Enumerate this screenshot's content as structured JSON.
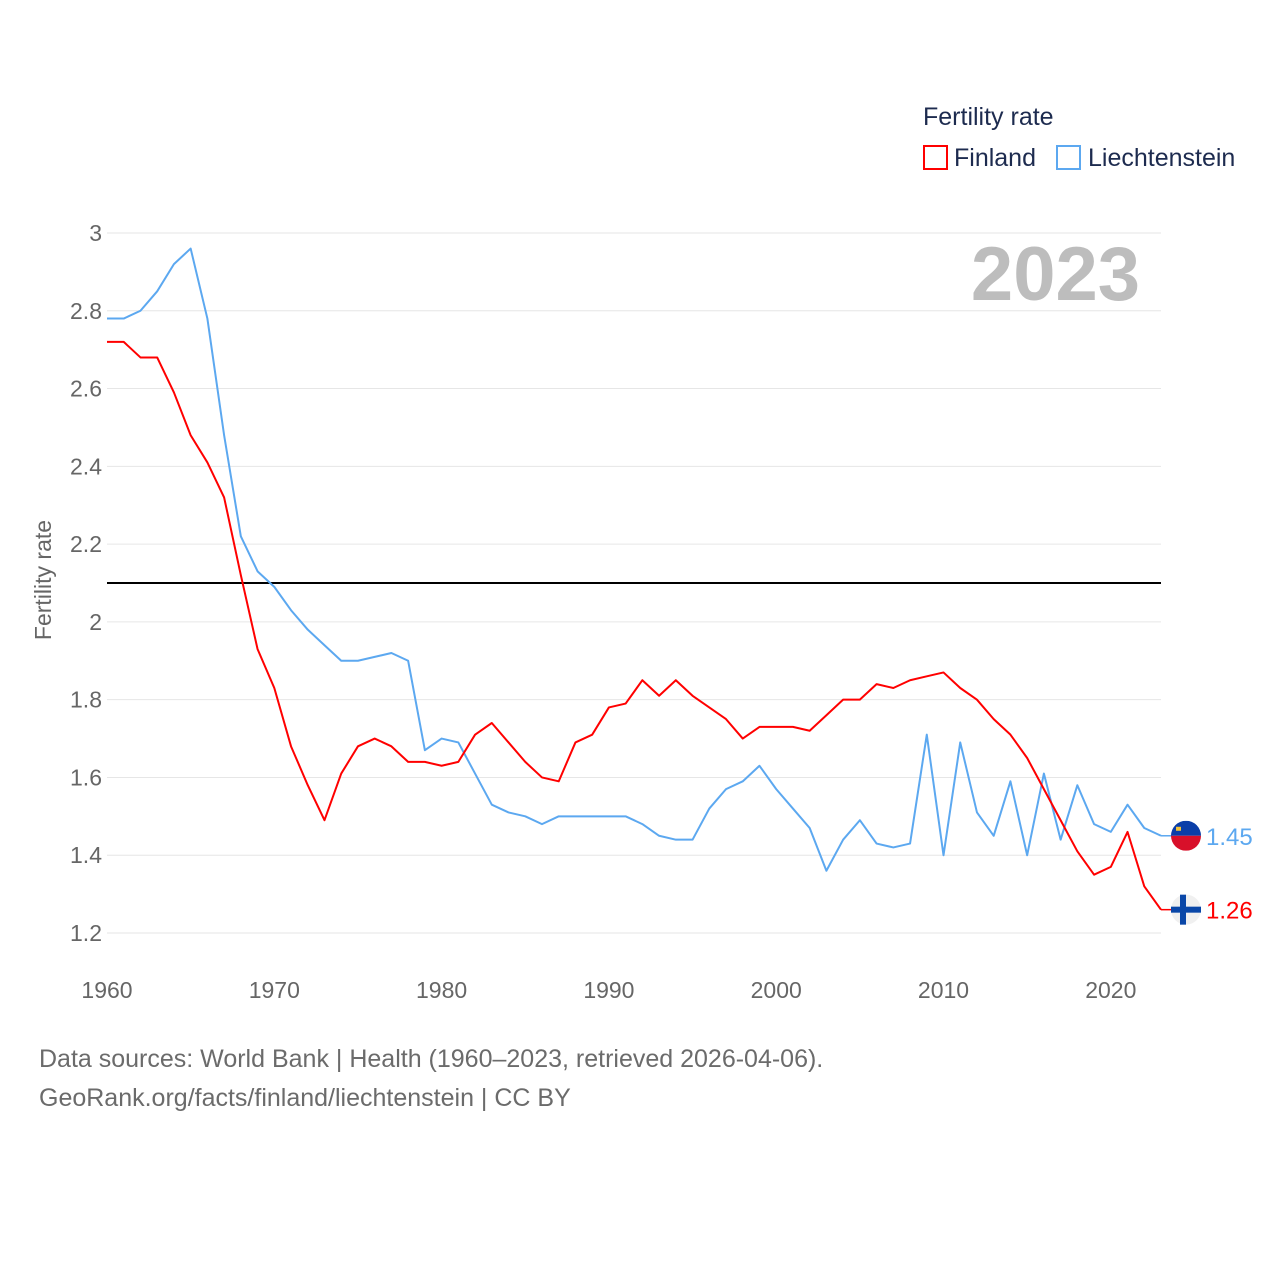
{
  "chart_data": {
    "type": "line",
    "title": "2023",
    "xlabel": "",
    "ylabel": "Fertility rate",
    "legend_title": "Fertility rate",
    "legend_position": "top-right",
    "xlim": [
      1960,
      2023
    ],
    "ylim": [
      1.2,
      3
    ],
    "x_ticks": [
      "1960",
      "1970",
      "1980",
      "1990",
      "2000",
      "2010",
      "2020"
    ],
    "y_ticks": [
      "1.2",
      "1.4",
      "1.6",
      "1.8",
      "2",
      "2.2",
      "2.4",
      "2.6",
      "2.8",
      "3"
    ],
    "grid": true,
    "reference_line": 2.1,
    "x": [
      1960,
      1961,
      1962,
      1963,
      1964,
      1965,
      1966,
      1967,
      1968,
      1969,
      1970,
      1971,
      1972,
      1973,
      1974,
      1975,
      1976,
      1977,
      1978,
      1979,
      1980,
      1981,
      1982,
      1983,
      1984,
      1985,
      1986,
      1987,
      1988,
      1989,
      1990,
      1991,
      1992,
      1993,
      1994,
      1995,
      1996,
      1997,
      1998,
      1999,
      2000,
      2001,
      2002,
      2003,
      2004,
      2005,
      2006,
      2007,
      2008,
      2009,
      2010,
      2011,
      2012,
      2013,
      2014,
      2015,
      2016,
      2017,
      2018,
      2019,
      2020,
      2021,
      2022,
      2023
    ],
    "series": [
      {
        "name": "Finland",
        "color": "#ff0000",
        "end_label": "1.26",
        "values": [
          2.72,
          2.72,
          2.68,
          2.68,
          2.59,
          2.48,
          2.41,
          2.32,
          2.12,
          1.93,
          1.83,
          1.68,
          1.58,
          1.49,
          1.61,
          1.68,
          1.7,
          1.68,
          1.64,
          1.64,
          1.63,
          1.64,
          1.71,
          1.74,
          1.69,
          1.64,
          1.6,
          1.59,
          1.69,
          1.71,
          1.78,
          1.79,
          1.85,
          1.81,
          1.85,
          1.81,
          1.78,
          1.75,
          1.7,
          1.73,
          1.73,
          1.73,
          1.72,
          1.76,
          1.8,
          1.8,
          1.84,
          1.83,
          1.85,
          1.86,
          1.87,
          1.83,
          1.8,
          1.75,
          1.71,
          1.65,
          1.57,
          1.49,
          1.41,
          1.35,
          1.37,
          1.46,
          1.32,
          1.26
        ]
      },
      {
        "name": "Liechtenstein",
        "color": "#5ca8f0",
        "end_label": "1.45",
        "values": [
          2.78,
          2.78,
          2.8,
          2.85,
          2.92,
          2.96,
          2.78,
          2.48,
          2.22,
          2.13,
          2.09,
          2.03,
          1.98,
          1.94,
          1.9,
          1.9,
          1.91,
          1.92,
          1.9,
          1.67,
          1.7,
          1.69,
          1.61,
          1.53,
          1.51,
          1.5,
          1.48,
          1.5,
          1.5,
          1.5,
          1.5,
          1.5,
          1.48,
          1.45,
          1.44,
          1.44,
          1.52,
          1.57,
          1.59,
          1.63,
          1.57,
          1.52,
          1.47,
          1.36,
          1.44,
          1.49,
          1.43,
          1.42,
          1.43,
          1.71,
          1.4,
          1.69,
          1.51,
          1.45,
          1.59,
          1.4,
          1.61,
          1.44,
          1.58,
          1.48,
          1.46,
          1.53,
          1.47,
          1.45
        ]
      }
    ]
  },
  "footer": {
    "line1": "Data sources: World Bank | Health (1960–2023, retrieved 2026-04-06).",
    "line2": "GeoRank.org/facts/finland/liechtenstein | CC BY"
  }
}
